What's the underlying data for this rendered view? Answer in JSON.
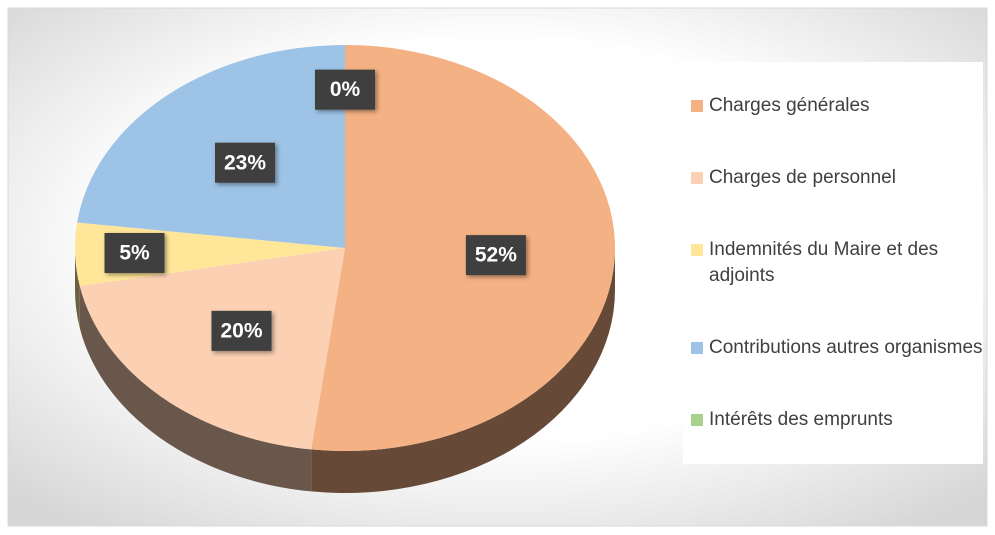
{
  "chart_data": {
    "type": "pie",
    "categories": [
      "Charges générales",
      "Charges de personnel",
      "Indemnités du Maire et des adjoints",
      "Contributions autres organismes",
      "Intérêts des emprunts"
    ],
    "values": [
      52,
      20,
      5,
      23,
      0
    ],
    "value_labels": [
      "52%",
      "20%",
      "5%",
      "23%",
      "0%"
    ],
    "colors": [
      "#f4b183",
      "#fbd0b3",
      "#ffe699",
      "#9dc3e6",
      "#a9d18e"
    ],
    "legend": "right"
  }
}
